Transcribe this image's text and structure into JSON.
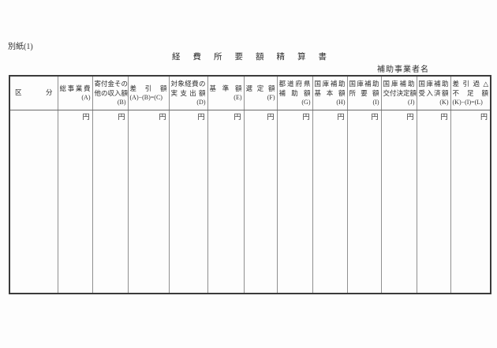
{
  "page": {
    "attachment_label": "別紙(1)",
    "title": "経費所要額精算書",
    "operator_label": "補助事業者名"
  },
  "table": {
    "columns": [
      {
        "name": "category",
        "header_lines": [
          "区分"
        ],
        "code_line": "",
        "code_align": "",
        "unit": ""
      },
      {
        "name": "total-project-cost",
        "header_lines": [
          "総事業費"
        ],
        "code_line": "(A)",
        "code_align": "right",
        "unit": "円"
      },
      {
        "name": "donations-other-income",
        "header_lines": [
          "寄付金その",
          "他の収入額"
        ],
        "code_line": "(B)",
        "code_align": "right",
        "unit": "円"
      },
      {
        "name": "balance",
        "header_lines": [
          "差引額"
        ],
        "code_line": "(A)−(B)=(C)",
        "code_align": "justify",
        "unit": "円"
      },
      {
        "name": "target-expense-actual",
        "header_lines": [
          "対象経費の",
          "実支出額"
        ],
        "code_line": "(D)",
        "code_align": "right",
        "unit": "円"
      },
      {
        "name": "standard-amount",
        "header_lines": [
          "基準額"
        ],
        "code_line": "(E)",
        "code_align": "right",
        "unit": "円"
      },
      {
        "name": "selected-amount",
        "header_lines": [
          "選定額"
        ],
        "code_line": "(F)",
        "code_align": "right",
        "unit": "円"
      },
      {
        "name": "prefectural-subsidy",
        "header_lines": [
          "都道府県",
          "補助額"
        ],
        "code_line": "(G)",
        "code_align": "right",
        "unit": "円"
      },
      {
        "name": "national-subsidy-base",
        "header_lines": [
          "国庫補助",
          "基本額"
        ],
        "code_line": "(H)",
        "code_align": "right",
        "unit": "円"
      },
      {
        "name": "national-subsidy-required",
        "header_lines": [
          "国庫補助",
          "所要額"
        ],
        "code_line": "(I)",
        "code_align": "right",
        "unit": "円"
      },
      {
        "name": "national-subsidy-granted",
        "header_lines": [
          "国庫補助",
          "交付決定額"
        ],
        "code_line": "(J)",
        "code_align": "right",
        "unit": "円"
      },
      {
        "name": "national-subsidy-received",
        "header_lines": [
          "国庫補助",
          "受入済額"
        ],
        "code_line": "(K)",
        "code_align": "right",
        "unit": "円"
      },
      {
        "name": "over-or-shortage",
        "header_lines": [
          "差引過△",
          "不足額"
        ],
        "code_line": "(K)−(I)=(L)",
        "code_align": "justify",
        "unit": "円"
      }
    ]
  }
}
